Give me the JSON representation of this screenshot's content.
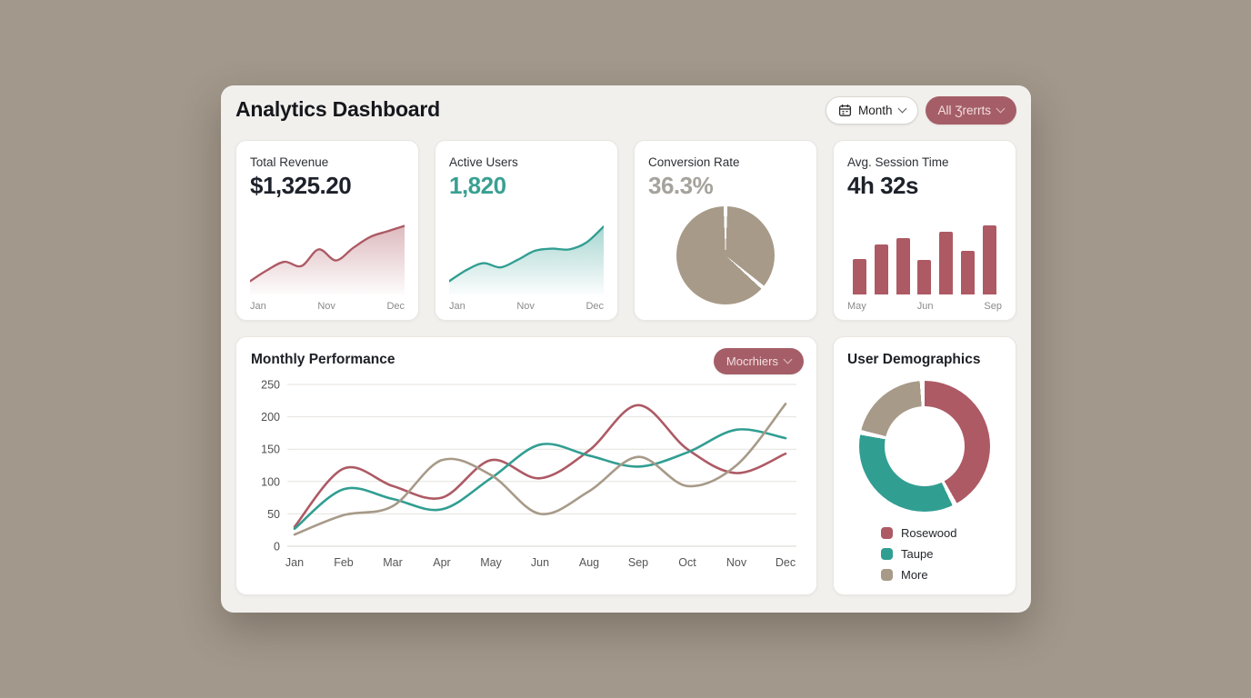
{
  "colors": {
    "page_bg": "#a2988b",
    "panel_bg": "#f2f0ed",
    "rosewood": "#ad5a64",
    "teal": "#319e92",
    "taupe": "#a79a88",
    "grid_line": "#e4e2de",
    "axis_text": "#4f4f4f",
    "accent_button_bg": "#a55e67",
    "accent_button_text": "#f2dee1"
  },
  "header": {
    "title": "Analytics Dashboard",
    "month_button": {
      "label": "Month",
      "icon": "calendar-icon"
    },
    "events_button": {
      "label": "All Ʒrerrts"
    }
  },
  "stat_cards": [
    {
      "label": "Total Revenue",
      "value": "$1,325.20",
      "value_color": "#1d212a",
      "chart": {
        "type": "area",
        "color_key": "rosewood",
        "values": [
          14,
          30,
          42,
          36,
          60,
          44,
          62,
          78,
          86,
          94
        ],
        "x_labels": [
          "Jan",
          "Nov",
          "Dec"
        ]
      }
    },
    {
      "label": "Active Users",
      "value": "1,820",
      "value_color": "#3aa092",
      "chart": {
        "type": "area",
        "color_key": "teal",
        "values": [
          14,
          30,
          40,
          34,
          45,
          58,
          61,
          60,
          70,
          93
        ],
        "x_labels": [
          "Jan",
          "Nov",
          "Dec"
        ]
      }
    },
    {
      "label": "Conversion Rate",
      "value": "36.3%",
      "value_color": "#a6a29c",
      "chart": {
        "type": "pie",
        "color_key": "taupe",
        "slice_pct": 36.3
      }
    },
    {
      "label": "Avg. Session Time",
      "value": "4h 32s",
      "value_color": "#1d212a",
      "chart": {
        "type": "bar",
        "color_key": "rosewood",
        "values": [
          45,
          64,
          72,
          44,
          80,
          56,
          88
        ],
        "x_labels": [
          "May",
          "Jun",
          "Sep"
        ]
      }
    }
  ],
  "monthly_performance": {
    "title": "Monthly Performance",
    "dropdown_label": "Mocrhiers",
    "chart_data": {
      "type": "line",
      "x": [
        "Jan",
        "Feb",
        "Mar",
        "Apr",
        "May",
        "Jun",
        "Aug",
        "Sep",
        "Oct",
        "Nov",
        "Dec"
      ],
      "series": [
        {
          "name": "rosewood",
          "values": [
            30,
            120,
            93,
            75,
            133,
            105,
            148,
            218,
            150,
            113,
            143
          ]
        },
        {
          "name": "teal",
          "values": [
            27,
            88,
            73,
            57,
            105,
            157,
            140,
            123,
            145,
            180,
            167
          ]
        },
        {
          "name": "taupe",
          "values": [
            18,
            48,
            62,
            133,
            110,
            50,
            85,
            138,
            93,
            125,
            220
          ]
        }
      ],
      "ylim": [
        0,
        250
      ],
      "yticks": [
        0,
        50,
        100,
        150,
        200,
        250
      ],
      "grid": true,
      "legend": "none"
    }
  },
  "demographics": {
    "title": "User Demographics",
    "chart_data": {
      "type": "donut",
      "segments": [
        {
          "label": "Rosewood",
          "color_key": "rosewood",
          "pct": 43
        },
        {
          "label": "Taupe",
          "color_key": "teal",
          "pct": 36
        },
        {
          "label": "More",
          "color_key": "taupe",
          "pct": 21
        }
      ]
    },
    "legend": [
      {
        "label": "Rosewood",
        "color_key": "rosewood"
      },
      {
        "label": "Taupe",
        "color_key": "teal"
      },
      {
        "label": "More",
        "color_key": "taupe"
      }
    ]
  }
}
